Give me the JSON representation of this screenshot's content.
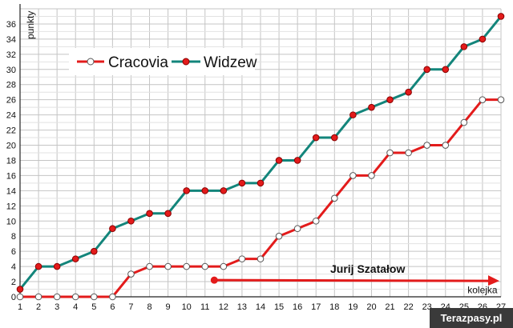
{
  "chart_data": {
    "type": "line",
    "title": "",
    "xlabel": "kolejka",
    "ylabel": "punkty",
    "x": [
      1,
      2,
      3,
      4,
      5,
      6,
      7,
      8,
      9,
      10,
      11,
      12,
      13,
      14,
      15,
      16,
      17,
      18,
      19,
      20,
      21,
      22,
      23,
      24,
      25,
      26,
      27
    ],
    "xlim": [
      1,
      27
    ],
    "ylim": [
      0,
      38
    ],
    "yticks": [
      0,
      2,
      4,
      6,
      8,
      10,
      12,
      14,
      16,
      18,
      20,
      22,
      24,
      26,
      28,
      30,
      32,
      34,
      36
    ],
    "grid": true,
    "legend_position": "top-left",
    "series": [
      {
        "name": "Cracovia",
        "color": "#e31b1b",
        "marker": "open-circle",
        "values": [
          0,
          0,
          0,
          0,
          0,
          0,
          3,
          4,
          4,
          4,
          4,
          4,
          5,
          5,
          8,
          9,
          10,
          13,
          16,
          16,
          19,
          19,
          20,
          20,
          23,
          26,
          26
        ]
      },
      {
        "name": "Widzew",
        "color": "#13857b",
        "marker": "red-circle",
        "values": [
          1,
          4,
          4,
          5,
          6,
          9,
          10,
          11,
          11,
          14,
          14,
          14,
          15,
          15,
          18,
          18,
          21,
          21,
          24,
          25,
          26,
          27,
          30,
          30,
          33,
          34,
          37
        ]
      }
    ],
    "annotations": [
      {
        "text": "Jurij Szatałow",
        "type": "arrow",
        "from_x": 11.5,
        "to_x": 27,
        "y": 2.2,
        "color": "#e31b1b"
      }
    ]
  },
  "watermark": {
    "text": "Terazpasy.pl"
  }
}
